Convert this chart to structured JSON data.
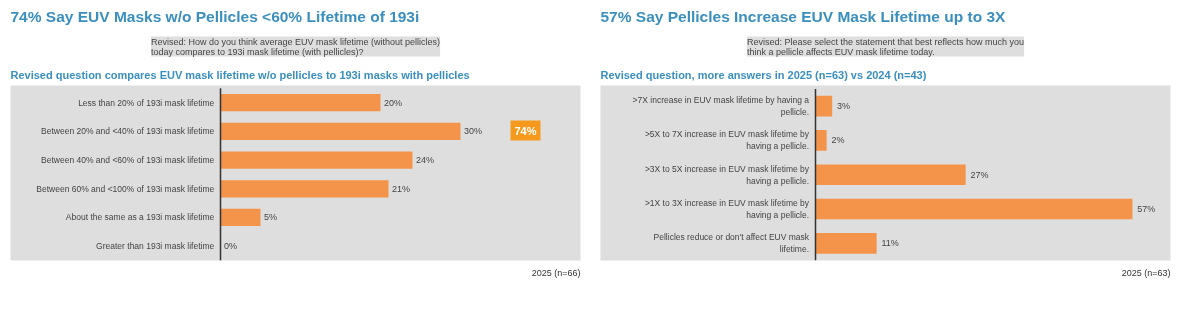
{
  "chart_data": [
    {
      "type": "bar",
      "orientation": "horizontal",
      "title": "74% Say EUV Masks w/o Pellicles <60% Lifetime of 193i",
      "subtitle": "Revised question compares EUV mask lifetime w/o pellicles to 193i masks with pellicles",
      "annotations": [
        "Revised: How do you think average EUV mask lifetime (without pellicles) today compares to 193i mask lifetime (with pellicles)?",
        "2025 (n=66)",
        "74%"
      ],
      "categories": [
        "Less than 20% of 193i mask lifetime",
        "Between 20% and <40% of 193i mask lifetime",
        "Between 40% and <60% of 193i mask lifetime",
        "Between 60% and <100% of 193i mask lifetime",
        "About the same as a 193i mask lifetime",
        "Greater than 193i mask lifetime"
      ],
      "values": [
        20,
        30,
        24,
        21,
        5,
        0
      ],
      "value_labels": [
        "20%",
        "30%",
        "24%",
        "21%",
        "5%",
        "0%"
      ],
      "color": "#f4934a",
      "grid": false
    },
    {
      "type": "bar",
      "orientation": "horizontal",
      "title": "57% Say Pellicles Increase EUV Mask Lifetime up to 3X",
      "subtitle": "Revised question, more answers in 2025 (n=63) vs 2024 (n=43)",
      "annotations": [
        "Revised: Please select the statement that best reflects how much you think a pellicle affects EUV mask lifetime today.",
        "2025 (n=63)"
      ],
      "categories": [
        ">7X increase in EUV mask lifetime by having a pellicle.",
        ">5X to 7X increase in EUV mask lifetime by having a pellicle.",
        ">3X to 5X increase in EUV mask lifetime by having a pellicle.",
        ">1X to 3X increase in EUV mask lifetime by having a pellicle.",
        "Pellicles reduce or don't affect EUV mask lifetime."
      ],
      "values": [
        3,
        2,
        27,
        57,
        11
      ],
      "value_labels": [
        "3%",
        "2%",
        "27%",
        "57%",
        "11%"
      ],
      "color": "#f4934a",
      "grid": false
    }
  ]
}
